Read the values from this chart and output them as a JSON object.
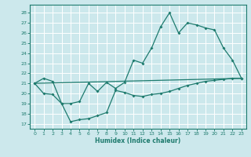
{
  "xlabel": "Humidex (Indice chaleur)",
  "bg_color": "#cce8ec",
  "line_color": "#1e7b6e",
  "grid_color": "#ffffff",
  "xlim": [
    -0.5,
    23.5
  ],
  "ylim": [
    16.5,
    28.8
  ],
  "yticks": [
    17,
    18,
    19,
    20,
    21,
    22,
    23,
    24,
    25,
    26,
    27,
    28
  ],
  "xticks": [
    0,
    1,
    2,
    3,
    4,
    5,
    6,
    7,
    8,
    9,
    10,
    11,
    12,
    13,
    14,
    15,
    16,
    17,
    18,
    19,
    20,
    21,
    22,
    23
  ],
  "line1_x": [
    0,
    1,
    2,
    3,
    4,
    5,
    6,
    7,
    8,
    9,
    10,
    11,
    12,
    13,
    14,
    15,
    16,
    17,
    18,
    19,
    20,
    21,
    22,
    23
  ],
  "line1_y": [
    21.0,
    21.5,
    21.2,
    19.0,
    19.0,
    19.2,
    21.0,
    20.2,
    21.1,
    20.5,
    21.1,
    23.3,
    23.0,
    24.5,
    26.6,
    28.0,
    26.0,
    27.0,
    26.8,
    26.5,
    26.3,
    24.5,
    23.3,
    21.5
  ],
  "line2_x": [
    0,
    23
  ],
  "line2_y": [
    21.0,
    21.5
  ],
  "line3_x": [
    0,
    1,
    2,
    3,
    4,
    5,
    6,
    7,
    8,
    9,
    10,
    11,
    12,
    13,
    14,
    15,
    16,
    17,
    18,
    19,
    20,
    21,
    22,
    23
  ],
  "line3_y": [
    21.0,
    20.0,
    19.9,
    19.0,
    17.2,
    17.4,
    17.5,
    17.8,
    18.1,
    20.3,
    20.1,
    19.8,
    19.7,
    19.9,
    20.0,
    20.2,
    20.5,
    20.8,
    21.0,
    21.2,
    21.3,
    21.4,
    21.5,
    21.5
  ]
}
